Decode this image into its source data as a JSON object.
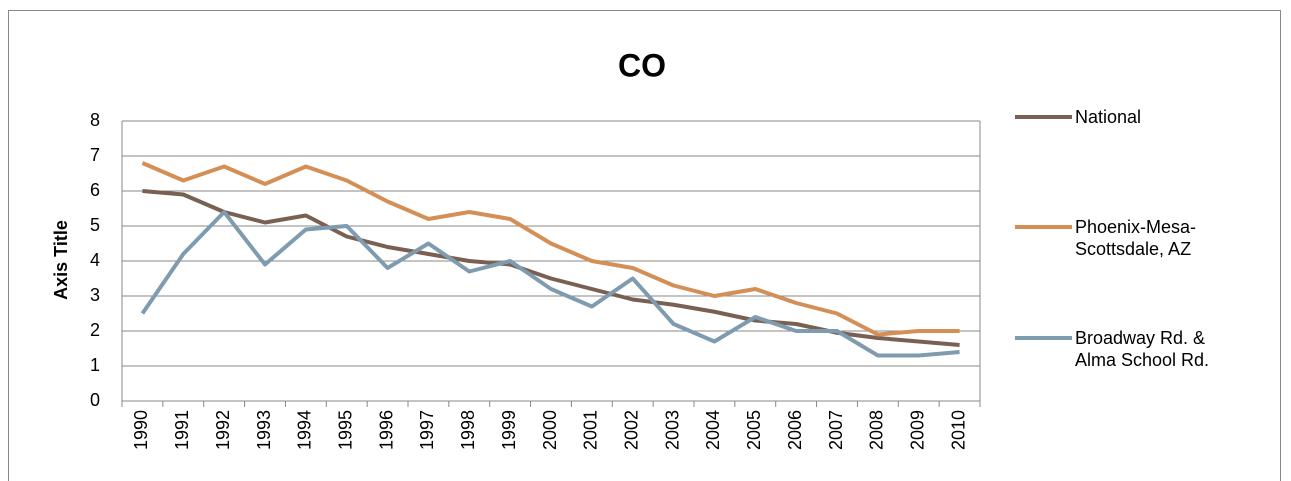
{
  "chart_data": {
    "type": "line",
    "title": "CO",
    "y_label": "Axis Title",
    "categories": [
      "1990",
      "1991",
      "1992",
      "1993",
      "1994",
      "1995",
      "1996",
      "1997",
      "1998",
      "1999",
      "2000",
      "2001",
      "2002",
      "2003",
      "2004",
      "2005",
      "2006",
      "2007",
      "2008",
      "2009",
      "2010"
    ],
    "series": [
      {
        "name": "National",
        "color": "#7a6052",
        "values": [
          6.0,
          5.9,
          5.4,
          5.1,
          5.3,
          4.7,
          4.4,
          4.2,
          4.0,
          3.9,
          3.5,
          3.2,
          2.9,
          2.75,
          2.55,
          2.3,
          2.2,
          1.95,
          1.8,
          1.7,
          1.6
        ]
      },
      {
        "name": "Phoenix-Mesa-Scottsdale, AZ",
        "color": "#d38f55",
        "values": [
          6.8,
          6.3,
          6.7,
          6.2,
          6.7,
          6.3,
          5.7,
          5.2,
          5.4,
          5.2,
          4.5,
          4.0,
          3.8,
          3.3,
          3.0,
          3.2,
          2.8,
          2.5,
          1.9,
          2.0,
          2.0
        ]
      },
      {
        "name": "Broadway Rd. & Alma School Rd.",
        "color": "#7f9bb0",
        "values": [
          2.5,
          4.2,
          5.4,
          3.9,
          4.9,
          5.0,
          3.8,
          4.5,
          3.7,
          4.0,
          3.2,
          2.7,
          3.5,
          2.2,
          1.7,
          2.4,
          2.0,
          2.0,
          1.3,
          1.3,
          1.4
        ]
      }
    ],
    "ylim": [
      0,
      8
    ],
    "yticks": [
      0,
      1,
      2,
      3,
      4,
      5,
      6,
      7,
      8
    ],
    "grid": true,
    "legend": "right"
  }
}
